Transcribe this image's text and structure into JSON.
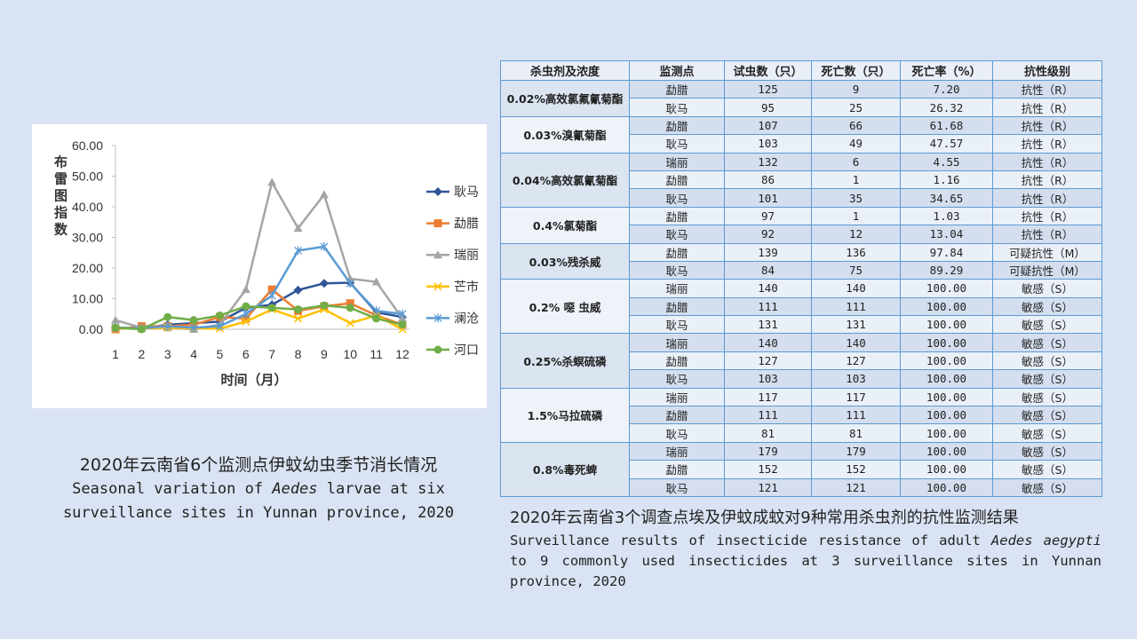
{
  "chart_data": {
    "type": "line",
    "ylabel": "布雷图指数",
    "xlabel": "时间（月）",
    "x": [
      1,
      2,
      3,
      4,
      5,
      6,
      7,
      8,
      9,
      10,
      11,
      12
    ],
    "xticks": [
      "1",
      "2",
      "3",
      "4",
      "5",
      "6",
      "7",
      "8",
      "9",
      "10",
      "11",
      "12"
    ],
    "yticks": [
      "0.00",
      "10.00",
      "20.00",
      "30.00",
      "40.00",
      "50.00",
      "60.00"
    ],
    "ylim": [
      0,
      60
    ],
    "grid": false,
    "legend_position": "right",
    "series": [
      {
        "name": "耿马",
        "color": "#2f5597",
        "marker": "diamond",
        "values": [
          0.5,
          0.3,
          1.5,
          2,
          2.5,
          7,
          8,
          12.8,
          15,
          15.2,
          5.5,
          4
        ]
      },
      {
        "name": "勐腊",
        "color": "#ed7d31",
        "marker": "square",
        "values": [
          0,
          1,
          1,
          1.5,
          4,
          3.5,
          13,
          6,
          7.5,
          8.5,
          4.5,
          1.5
        ]
      },
      {
        "name": "瑞丽",
        "color": "#a5a5a5",
        "marker": "triangle",
        "values": [
          3,
          0.5,
          0.5,
          0,
          1.5,
          13,
          48,
          33,
          44,
          16.5,
          15.5,
          3.5
        ]
      },
      {
        "name": "芒市",
        "color": "#ffc000",
        "marker": "x",
        "values": [
          0.3,
          0.2,
          0.5,
          0.3,
          0.2,
          2.5,
          6.5,
          3.5,
          6.5,
          2,
          4.5,
          0
        ]
      },
      {
        "name": "澜沧",
        "color": "#5b9bd5",
        "marker": "star",
        "values": [
          0.5,
          0.3,
          1,
          0.5,
          1,
          5,
          11,
          25.7,
          27,
          15,
          6,
          5
        ]
      },
      {
        "name": "河口",
        "color": "#70ad47",
        "marker": "circle",
        "values": [
          0.5,
          0,
          4,
          3,
          4.5,
          7.5,
          7,
          6.5,
          7.8,
          7,
          3.5,
          1.5
        ]
      }
    ]
  },
  "left_caption": {
    "zh": "2020年云南省6个监测点伊蚊幼虫季节消长情况",
    "en_before": "Seasonal variation of ",
    "en_italic": "Aedes",
    "en_after": " larvae at six surveillance sites in Yunnan province, 2020"
  },
  "table": {
    "headers": [
      "杀虫剂及浓度",
      "监测点",
      "试虫数（只）",
      "死亡数（只）",
      "死亡率（%）",
      "抗性级别"
    ],
    "groups": [
      {
        "name": "0.02%高效氯氟氰菊酯",
        "rows": [
          [
            "勐腊",
            "125",
            "9",
            "7.20",
            "抗性（R）"
          ],
          [
            "耿马",
            "95",
            "25",
            "26.32",
            "抗性（R）"
          ]
        ]
      },
      {
        "name": "0.03%溴氰菊酯",
        "rows": [
          [
            "勐腊",
            "107",
            "66",
            "61.68",
            "抗性（R）"
          ],
          [
            "耿马",
            "103",
            "49",
            "47.57",
            "抗性（R）"
          ]
        ]
      },
      {
        "name": "0.04%高效氯氰菊酯",
        "rows": [
          [
            "瑞丽",
            "132",
            "6",
            "4.55",
            "抗性（R）"
          ],
          [
            "勐腊",
            "86",
            "1",
            "1.16",
            "抗性（R）"
          ],
          [
            "耿马",
            "101",
            "35",
            "34.65",
            "抗性（R）"
          ]
        ]
      },
      {
        "name": "0.4%氯菊酯",
        "rows": [
          [
            "勐腊",
            "97",
            "1",
            "1.03",
            "抗性（R）"
          ],
          [
            "耿马",
            "92",
            "12",
            "13.04",
            "抗性（R）"
          ]
        ]
      },
      {
        "name": "0.03%残杀威",
        "rows": [
          [
            "勐腊",
            "139",
            "136",
            "97.84",
            "可疑抗性（M）"
          ],
          [
            "耿马",
            "84",
            "75",
            "89.29",
            "可疑抗性（M）"
          ]
        ]
      },
      {
        "name": "0.2% 噁 虫威",
        "rows": [
          [
            "瑞丽",
            "140",
            "140",
            "100.00",
            "敏感（S）"
          ],
          [
            "勐腊",
            "111",
            "111",
            "100.00",
            "敏感（S）"
          ],
          [
            "耿马",
            "131",
            "131",
            "100.00",
            "敏感（S）"
          ]
        ]
      },
      {
        "name": "0.25%杀螟硫磷",
        "rows": [
          [
            "瑞丽",
            "140",
            "140",
            "100.00",
            "敏感（S）"
          ],
          [
            "勐腊",
            "127",
            "127",
            "100.00",
            "敏感（S）"
          ],
          [
            "耿马",
            "103",
            "103",
            "100.00",
            "敏感（S）"
          ]
        ]
      },
      {
        "name": "1.5%马拉硫磷",
        "rows": [
          [
            "瑞丽",
            "117",
            "117",
            "100.00",
            "敏感（S）"
          ],
          [
            "勐腊",
            "111",
            "111",
            "100.00",
            "敏感（S）"
          ],
          [
            "耿马",
            "81",
            "81",
            "100.00",
            "敏感（S）"
          ]
        ]
      },
      {
        "name": "0.8%毒死蜱",
        "rows": [
          [
            "瑞丽",
            "179",
            "179",
            "100.00",
            "敏感（S）"
          ],
          [
            "勐腊",
            "152",
            "152",
            "100.00",
            "敏感（S）"
          ],
          [
            "耿马",
            "121",
            "121",
            "100.00",
            "敏感（S）"
          ]
        ]
      }
    ]
  },
  "right_caption": {
    "zh": "2020年云南省3个调查点埃及伊蚊成蚊对9种常用杀虫剂的抗性监测结果",
    "en_before": "Surveillance results of insecticide resistance of adult ",
    "en_italic": "Aedes aegypti",
    "en_after": " to 9 commonly used insecticides at 3 surveillance sites in Yunnan province, 2020"
  }
}
